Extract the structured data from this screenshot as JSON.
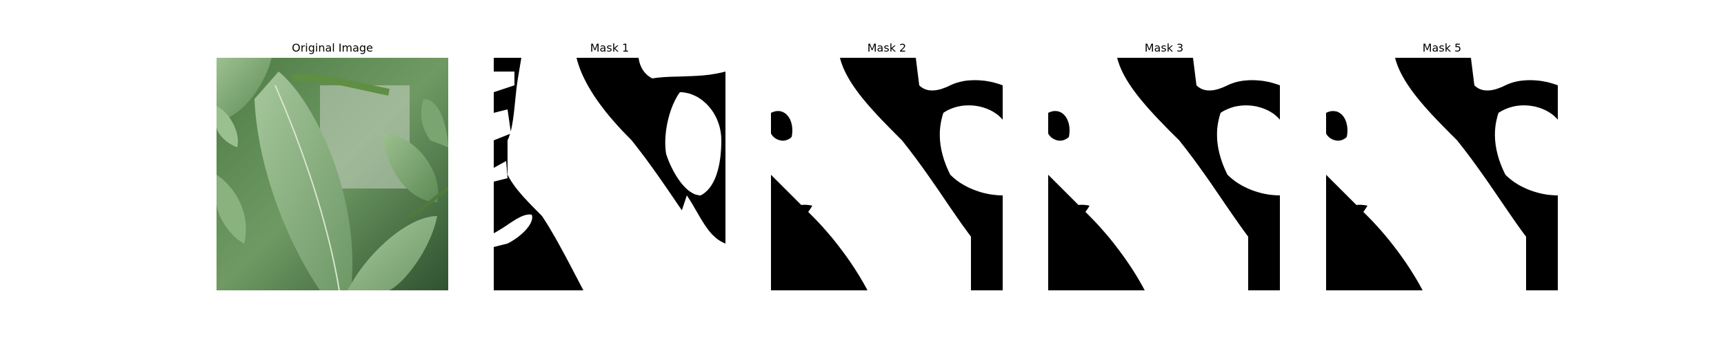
{
  "figure": {
    "panels": [
      {
        "title": "Original Image",
        "kind": "photo"
      },
      {
        "title": "Mask 1",
        "kind": "mask"
      },
      {
        "title": "Mask 2",
        "kind": "mask"
      },
      {
        "title": "Mask 3",
        "kind": "mask"
      },
      {
        "title": "Mask 5",
        "kind": "mask"
      }
    ]
  },
  "colors": {
    "mask_foreground": "#ffffff",
    "mask_background": "#000000",
    "leaf_light": "#8fb88a",
    "leaf_dark": "#3f6b3a"
  }
}
